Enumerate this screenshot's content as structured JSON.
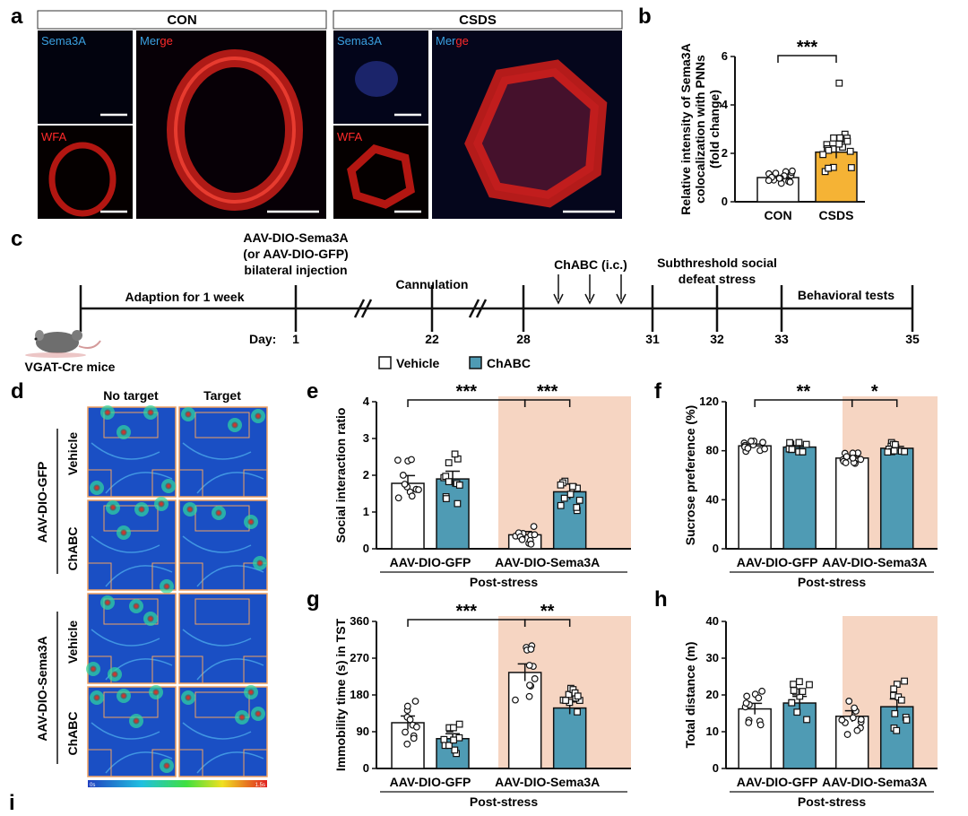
{
  "panel_labels": {
    "a": "a",
    "b": "b",
    "c": "c",
    "d": "d",
    "e": "e",
    "f": "f",
    "g": "g",
    "h": "h",
    "i": "i"
  },
  "panel_a": {
    "con_header": "CON",
    "csds_header": "CSDS",
    "con": {
      "sema": "Sema3A",
      "wfa": "WFA",
      "merge_a": "Mer",
      "merge_b": "ge"
    },
    "csds": {
      "sema": "Sema3A",
      "wfa": "WFA",
      "merge_a": "Mer",
      "merge_b": "ge"
    }
  },
  "legend": {
    "vehicle": "Vehicle",
    "chabc": "ChABC"
  },
  "timeline": {
    "adaption": "Adaption for 1 week",
    "injection": [
      "AAV-DIO-Sema3A",
      "(or AAV-DIO-GFP)",
      "bilateral injection"
    ],
    "cannulation": "Cannulation",
    "chabc": "ChABC (i.c.)",
    "stress": [
      "Subthreshold social",
      "defeat stress"
    ],
    "behavior": "Behavioral tests",
    "day_prefix": "Day:",
    "days": [
      "1",
      "22",
      "28",
      "31",
      "32",
      "33",
      "35"
    ],
    "mouse": "VGAT-Cre mice"
  },
  "panel_d": {
    "col_no_target": "No target",
    "col_target": "Target",
    "grp_gfp": "AAV-DIO-GFP",
    "grp_sema": "AAV-DIO-Sema3A",
    "row_vehicle": "Vehicle",
    "row_chabc": "ChABC",
    "scale_min": "0s",
    "scale_max": "1.5s"
  },
  "chart_data": [
    {
      "id": "b",
      "type": "bar",
      "categories": [
        "CON",
        "CSDS"
      ],
      "values": [
        1.0,
        2.05
      ],
      "ylabel": "Relative intensity of Sema3A colocalization with PNNs (fold change)",
      "ylabel_lines": [
        "Relative intensity of Sema3A",
        "colocalization with PNNs",
        "(fold change)"
      ],
      "ylim": [
        0,
        6
      ],
      "yticks": [
        "0",
        "2",
        "4",
        "6"
      ],
      "significance": "***",
      "colors": [
        "#ffffff",
        "#f5b335"
      ]
    },
    {
      "id": "e",
      "type": "bar",
      "groups": [
        "AAV-DIO-GFP",
        "AAV-DIO-Sema3A"
      ],
      "series": [
        {
          "values": [
            1.78,
            0.38
          ]
        },
        {
          "values": [
            1.9,
            1.55
          ]
        }
      ],
      "ylabel": "Social interaction ratio",
      "xlabel": "Post-stress",
      "ylim": [
        0,
        4
      ],
      "yticks": [
        "0",
        "1",
        "2",
        "3",
        "4"
      ],
      "significance": [
        "***",
        "***"
      ],
      "colors": [
        "#ffffff",
        "#4f9bb4"
      ]
    },
    {
      "id": "f",
      "type": "bar",
      "groups": [
        "AAV-DIO-GFP",
        "AAV-DIO-Sema3A"
      ],
      "series": [
        {
          "values": [
            84,
            74
          ]
        },
        {
          "values": [
            83,
            82
          ]
        }
      ],
      "ylabel": "Sucrose preference (%)",
      "xlabel": "Post-stress",
      "ylim": [
        0,
        120
      ],
      "yticks": [
        "0",
        "40",
        "80",
        "120"
      ],
      "significance": [
        "**",
        "*"
      ],
      "colors": [
        "#ffffff",
        "#4f9bb4"
      ]
    },
    {
      "id": "g",
      "type": "bar",
      "groups": [
        "AAV-DIO-GFP",
        "AAV-DIO-Sema3A"
      ],
      "series": [
        {
          "values": [
            112,
            235
          ]
        },
        {
          "values": [
            73,
            148
          ]
        }
      ],
      "ylabel": "Immobility time (s) in TST",
      "xlabel": "Post-stress",
      "ylim": [
        0,
        360
      ],
      "yticks": [
        "0",
        "90",
        "180",
        "270",
        "360"
      ],
      "significance": [
        "***",
        "**"
      ],
      "colors": [
        "#ffffff",
        "#4f9bb4"
      ]
    },
    {
      "id": "h",
      "type": "bar",
      "groups": [
        "AAV-DIO-GFP",
        "AAV-DIO-Sema3A"
      ],
      "series": [
        {
          "values": [
            16.2,
            14.2
          ]
        },
        {
          "values": [
            17.8,
            16.8
          ]
        }
      ],
      "ylabel": "Total distance (m)",
      "xlabel": "Post-stress",
      "ylim": [
        0,
        40
      ],
      "yticks": [
        "0",
        "10",
        "20",
        "30",
        "40"
      ],
      "colors": [
        "#ffffff",
        "#4f9bb4"
      ]
    }
  ]
}
